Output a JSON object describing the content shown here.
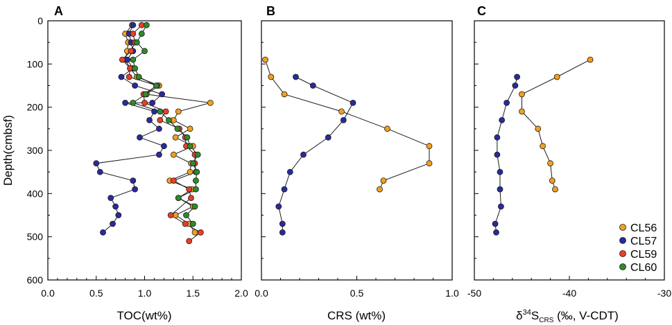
{
  "colors": {
    "CL56": "#f0a020",
    "CL57": "#2a2a9e",
    "CL59": "#e8402a",
    "CL60": "#2f8a2a"
  },
  "chart_data": [
    {
      "panel": "A",
      "type": "line",
      "xlabel": "TOC(wt%)",
      "ylabel": "Depth(cmbsf)",
      "xlim": [
        0.0,
        2.0
      ],
      "ylim": [
        0,
        600
      ],
      "xticks": [
        "0.0",
        "0.5",
        "1.0",
        "1.5",
        "2.0"
      ],
      "yticks": [
        "0",
        "100",
        "200",
        "300",
        "400",
        "500",
        "600"
      ],
      "series": [
        {
          "name": "CL56",
          "x": [
            0.87,
            0.8,
            0.83,
            0.82,
            0.8,
            0.85,
            0.92,
            1.15,
            1.02,
            1.68,
            1.35,
            1.3,
            1.47,
            1.32,
            1.5,
            1.3,
            1.48,
            1.47,
            1.26,
            1.49,
            1.35,
            1.5,
            1.32,
            1.46,
            1.52
          ],
          "y": [
            10,
            30,
            50,
            70,
            90,
            110,
            130,
            150,
            170,
            190,
            210,
            230,
            250,
            270,
            290,
            310,
            330,
            350,
            370,
            390,
            410,
            430,
            450,
            470,
            490
          ]
        },
        {
          "name": "CL57",
          "x": [
            0.88,
            0.84,
            0.86,
            0.88,
            0.82,
            0.88,
            0.76,
            0.9,
            1.18,
            1.08,
            0.8,
            1.1,
            1.05,
            1.15,
            0.95,
            1.2,
            1.15,
            0.5,
            0.54,
            0.88,
            0.9,
            0.65,
            0.7,
            0.73,
            0.67,
            0.57
          ],
          "y": [
            10,
            30,
            50,
            70,
            90,
            110,
            130,
            150,
            170,
            190,
            190,
            210,
            230,
            250,
            270,
            290,
            310,
            330,
            350,
            370,
            390,
            410,
            430,
            450,
            470,
            490
          ]
        },
        {
          "name": "CL59",
          "x": [
            0.97,
            0.88,
            0.9,
            0.86,
            0.77,
            0.85,
            0.84,
            1.13,
            0.99,
            1.0,
            1.22,
            1.16,
            1.36,
            1.42,
            1.43,
            1.52,
            1.52,
            1.53,
            1.3,
            1.46,
            1.48,
            1.27,
            1.42,
            1.58,
            1.46
          ],
          "y": [
            10,
            30,
            50,
            70,
            90,
            110,
            130,
            150,
            170,
            190,
            210,
            230,
            250,
            270,
            290,
            310,
            330,
            350,
            370,
            390,
            410,
            450,
            470,
            490,
            510
          ]
        },
        {
          "name": "CL60",
          "x": [
            1.02,
            0.97,
            0.92,
            1.0,
            0.88,
            0.9,
            0.94,
            1.12,
            1.01,
            0.88,
            1.16,
            1.25,
            1.34,
            1.44,
            1.47,
            1.55,
            1.5,
            1.54,
            1.53,
            1.53,
            1.35,
            1.52,
            1.43,
            1.5
          ],
          "y": [
            10,
            30,
            50,
            70,
            90,
            110,
            130,
            150,
            170,
            190,
            210,
            230,
            250,
            270,
            290,
            310,
            330,
            350,
            370,
            390,
            410,
            430,
            450,
            470
          ]
        }
      ]
    },
    {
      "panel": "B",
      "type": "line",
      "xlabel": "CRS (wt%)",
      "xlim": [
        0.0,
        1.0
      ],
      "ylim": [
        0,
        600
      ],
      "xticks": [
        "0.0",
        "0.5",
        "1.0"
      ],
      "series": [
        {
          "name": "CL56",
          "x": [
            0.02,
            0.05,
            0.12,
            0.42,
            0.66,
            0.88,
            0.88,
            0.64,
            0.62
          ],
          "y": [
            90,
            130,
            170,
            210,
            250,
            290,
            330,
            370,
            390
          ]
        },
        {
          "name": "CL57",
          "x": [
            0.18,
            0.27,
            0.48,
            0.43,
            0.35,
            0.22,
            0.15,
            0.12,
            0.09,
            0.11,
            0.11
          ],
          "y": [
            130,
            150,
            190,
            230,
            270,
            310,
            350,
            390,
            430,
            470,
            490
          ]
        }
      ]
    },
    {
      "panel": "C",
      "type": "line",
      "xlabel_parts": [
        "δ",
        "34",
        "S",
        "CRS",
        " (‰, V-CDT)"
      ],
      "xlim": [
        -50,
        -30
      ],
      "ylim": [
        0,
        600
      ],
      "xticks": [
        "-50",
        "-40",
        "-30"
      ],
      "series": [
        {
          "name": "CL56",
          "x": [
            -37.8,
            -41.3,
            -45.0,
            -45.0,
            -43.3,
            -42.8,
            -42.0,
            -41.8,
            -41.5
          ],
          "y": [
            90,
            130,
            170,
            210,
            250,
            290,
            330,
            370,
            390
          ]
        },
        {
          "name": "CL57",
          "x": [
            -45.5,
            -45.7,
            -46.6,
            -47.1,
            -47.6,
            -47.6,
            -47.3,
            -47.3,
            -47.2,
            -47.8,
            -47.7
          ],
          "y": [
            130,
            150,
            190,
            230,
            270,
            310,
            350,
            390,
            430,
            470,
            490
          ]
        }
      ]
    }
  ],
  "legend": [
    "CL56",
    "CL57",
    "CL59",
    "CL60"
  ]
}
